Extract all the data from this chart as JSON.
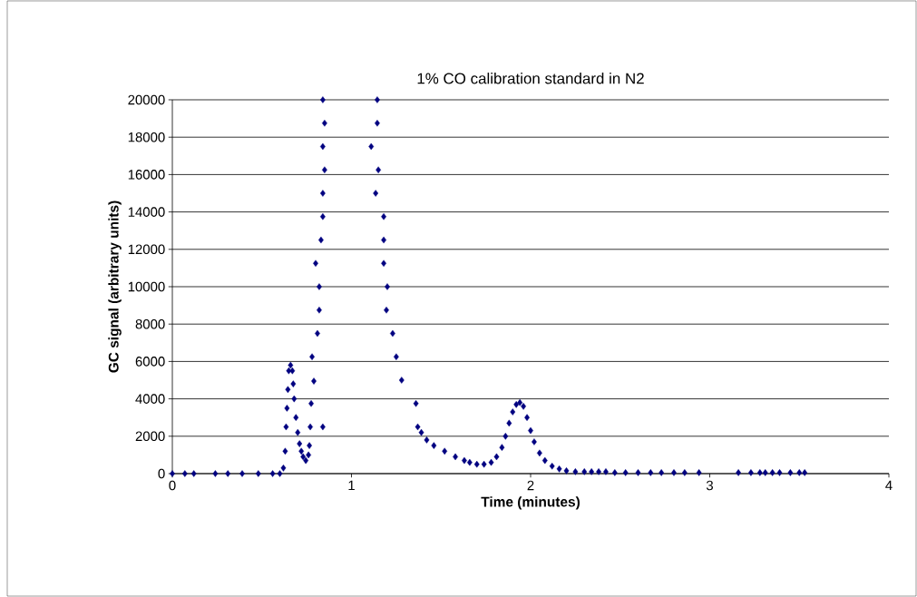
{
  "chart_data": {
    "type": "scatter",
    "title": "1% CO calibration standard in N2",
    "xlabel": "Time (minutes)",
    "ylabel": "GC signal (arbitrary units)",
    "xlim": [
      0,
      4
    ],
    "xticks": [
      0,
      1,
      2,
      3,
      4
    ],
    "ylim": [
      0,
      20000
    ],
    "yticks": [
      0,
      2000,
      4000,
      6000,
      8000,
      10000,
      12000,
      14000,
      16000,
      18000,
      20000
    ],
    "grid": "y",
    "marker": "diamond",
    "series": [
      {
        "color": "#000080",
        "x": [
          0,
          0.07,
          0.12,
          0.24,
          0.31,
          0.39,
          0.48,
          0.56,
          0.6,
          0.62,
          0.63,
          0.635,
          0.64,
          0.645,
          0.65,
          0.66,
          0.67,
          0.675,
          0.68,
          0.69,
          0.7,
          0.71,
          0.72,
          0.73,
          0.745,
          0.76,
          0.765,
          0.77,
          0.78,
          0.79,
          0.775,
          0.8,
          0.82,
          0.82,
          0.81,
          0.83,
          0.84,
          0.84,
          0.85,
          0.84,
          0.85,
          0.84,
          0.84,
          1.144,
          1.144,
          1.11,
          1.15,
          1.135,
          1.18,
          1.18,
          1.18,
          1.2,
          1.195,
          1.23,
          1.25,
          1.28,
          1.36,
          1.37,
          1.39,
          1.42,
          1.46,
          1.52,
          1.58,
          1.63,
          1.66,
          1.7,
          1.74,
          1.78,
          1.81,
          1.84,
          1.86,
          1.88,
          1.9,
          1.92,
          1.94,
          1.96,
          1.98,
          2.0,
          2.02,
          2.05,
          2.08,
          2.12,
          2.16,
          2.2,
          2.25,
          2.3,
          2.34,
          2.38,
          2.42,
          2.47,
          2.53,
          2.6,
          2.67,
          2.73,
          2.8,
          2.86,
          2.94,
          3.16,
          3.23,
          3.28,
          3.31,
          3.35,
          3.39,
          3.45,
          3.5,
          3.53
        ],
        "values": [
          0,
          0,
          0,
          0,
          0,
          0,
          0,
          0,
          0,
          300,
          1200,
          2500,
          3500,
          4500,
          5500,
          5800,
          5500,
          4800,
          4000,
          3000,
          2200,
          1600,
          1200,
          900,
          700,
          1000,
          1500,
          2500,
          6250,
          4950,
          3750,
          11250,
          10000,
          8750,
          7500,
          12500,
          13750,
          15000,
          16250,
          17500,
          18750,
          20000,
          2500,
          20000,
          18750,
          17500,
          16250,
          15000,
          13750,
          12500,
          11250,
          10000,
          8750,
          7500,
          6250,
          5000,
          3750,
          2500,
          2200,
          1800,
          1500,
          1200,
          900,
          700,
          600,
          500,
          500,
          600,
          900,
          1400,
          2000,
          2700,
          3300,
          3700,
          3800,
          3600,
          3000,
          2300,
          1700,
          1100,
          700,
          400,
          250,
          150,
          100,
          100,
          100,
          100,
          100,
          50,
          50,
          50,
          50,
          50,
          50,
          50,
          50,
          50,
          50,
          50,
          50,
          50,
          50,
          50,
          50,
          50
        ]
      }
    ]
  }
}
